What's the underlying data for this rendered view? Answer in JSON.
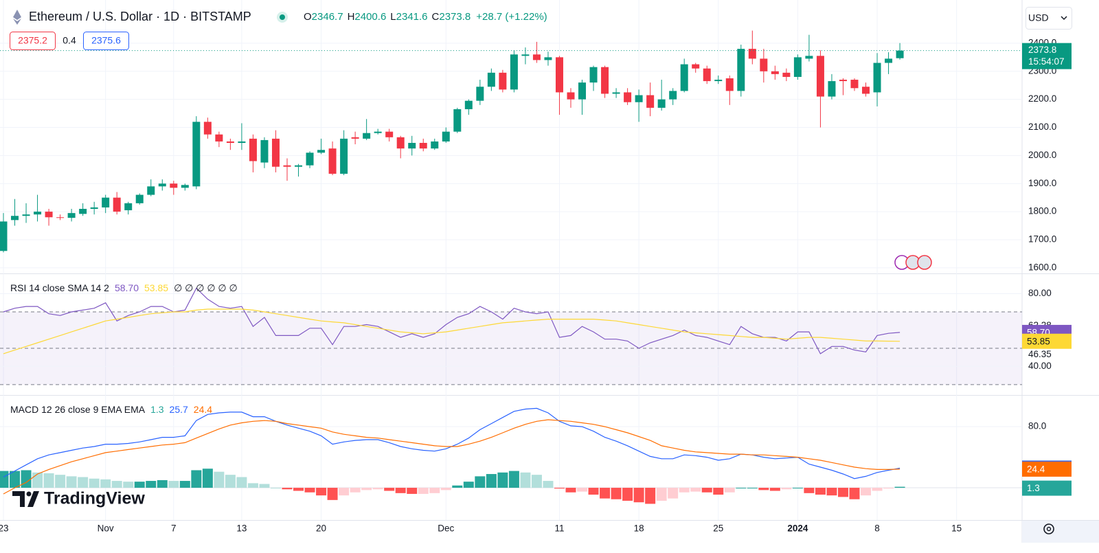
{
  "header": {
    "symbol": "Ethereum / U.S. Dollar · 1D · BITSTAMP",
    "o_label": "O",
    "h_label": "H",
    "l_label": "L",
    "c_label": "C",
    "change": "+28.7 (+1.22%)",
    "bid": "2375.2",
    "spread": "0.4",
    "ask": "2375.6",
    "currency": "USD",
    "brand": "TradingView",
    "countdown": "15:54:07"
  },
  "chart_data": [
    {
      "type": "candlestick",
      "categories": [
        "23",
        null,
        null,
        null,
        null,
        null,
        null,
        null,
        null,
        "Nov",
        null,
        null,
        null,
        null,
        null,
        "7",
        null,
        null,
        null,
        null,
        null,
        "13",
        null,
        null,
        null,
        null,
        null,
        null,
        "20",
        null,
        null,
        null,
        null,
        null,
        null,
        null,
        null,
        null,
        null,
        "Dec",
        null,
        null,
        null,
        null,
        null,
        null,
        null,
        null,
        null,
        "11",
        null,
        null,
        null,
        null,
        null,
        null,
        "18",
        null,
        null,
        null,
        null,
        null,
        null,
        "25",
        null,
        null,
        null,
        null,
        null,
        null,
        "2024",
        null,
        null,
        null,
        null,
        null,
        null,
        "8",
        null,
        null
      ],
      "future_categories": [
        null,
        null,
        null,
        null,
        "15"
      ],
      "open": [
        1660,
        1770,
        1785,
        1790,
        1800,
        1780,
        1778,
        1792,
        1810,
        1815,
        1850,
        1805,
        1830,
        1860,
        1890,
        1900,
        1885,
        1890,
        2120,
        2075,
        2050,
        2045,
        2060,
        1975,
        2060,
        1965,
        1960,
        1965,
        2010,
        2025,
        1935,
        2065,
        2060,
        2080,
        2085,
        2065,
        2025,
        2045,
        2025,
        2050,
        2085,
        2165,
        2195,
        2245,
        2295,
        2235,
        2355,
        2360,
        2340,
        2350,
        2225,
        2200,
        2260,
        2315,
        2220,
        2225,
        2190,
        2215,
        2170,
        2200,
        2230,
        2325,
        2310,
        2265,
        2275,
        2230,
        2380,
        2345,
        2300,
        2295,
        2280,
        2345,
        2355,
        2210,
        2270,
        2270,
        2245,
        2225,
        2330,
        2346.7
      ],
      "high": [
        1795,
        1845,
        1830,
        1860,
        1810,
        1790,
        1810,
        1830,
        1835,
        1860,
        1870,
        1835,
        1865,
        1915,
        1915,
        1910,
        1900,
        2140,
        2135,
        2085,
        2060,
        2115,
        2075,
        2065,
        2090,
        1990,
        1970,
        2015,
        2060,
        2050,
        2090,
        2085,
        2130,
        2095,
        2095,
        2070,
        2070,
        2060,
        2060,
        2100,
        2170,
        2200,
        2270,
        2310,
        2305,
        2375,
        2385,
        2405,
        2370,
        2355,
        2240,
        2270,
        2320,
        2320,
        2240,
        2240,
        2235,
        2260,
        2270,
        2240,
        2345,
        2330,
        2320,
        2285,
        2285,
        2395,
        2445,
        2380,
        2320,
        2310,
        2360,
        2430,
        2375,
        2290,
        2275,
        2275,
        2260,
        2365,
        2368,
        2400.6
      ],
      "low": [
        1655,
        1750,
        1760,
        1765,
        1750,
        1770,
        1765,
        1785,
        1790,
        1795,
        1790,
        1790,
        1825,
        1855,
        1875,
        1860,
        1875,
        1880,
        2060,
        2030,
        2020,
        2020,
        1940,
        1955,
        1940,
        1910,
        1925,
        1955,
        2005,
        1930,
        1930,
        2040,
        2055,
        2075,
        2050,
        1990,
        2000,
        2015,
        2020,
        2045,
        2080,
        2145,
        2180,
        2230,
        2225,
        2225,
        2325,
        2330,
        2320,
        2145,
        2170,
        2145,
        2230,
        2205,
        2205,
        2180,
        2120,
        2140,
        2160,
        2180,
        2225,
        2295,
        2255,
        2255,
        2180,
        2210,
        2325,
        2260,
        2270,
        2265,
        2270,
        2335,
        2100,
        2200,
        2215,
        2230,
        2210,
        2175,
        2290,
        2341.6
      ],
      "close": [
        1765,
        1785,
        1790,
        1800,
        1780,
        1778,
        1795,
        1810,
        1815,
        1850,
        1800,
        1830,
        1860,
        1890,
        1900,
        1885,
        1895,
        2120,
        2075,
        2050,
        2045,
        2050,
        1980,
        2055,
        1960,
        1960,
        1965,
        2010,
        2020,
        1935,
        2060,
        2060,
        2080,
        2085,
        2065,
        2025,
        2045,
        2025,
        2050,
        2085,
        2165,
        2195,
        2245,
        2295,
        2235,
        2360,
        2360,
        2340,
        2350,
        2225,
        2200,
        2260,
        2315,
        2220,
        2225,
        2190,
        2215,
        2170,
        2200,
        2230,
        2325,
        2310,
        2265,
        2270,
        2230,
        2380,
        2345,
        2300,
        2290,
        2280,
        2350,
        2355,
        2210,
        2265,
        2265,
        2240,
        2220,
        2330,
        2345,
        2373.8
      ],
      "up_color": "#089981",
      "down_color": "#f23645",
      "ylim": [
        1580,
        2554
      ],
      "yticks": [
        {
          "value": 1600,
          "label": "1600.0"
        },
        {
          "value": 1700,
          "label": "1700.0"
        },
        {
          "value": 1800,
          "label": "1800.0"
        },
        {
          "value": 1900,
          "label": "1900.0"
        },
        {
          "value": 2000,
          "label": "2000.0"
        },
        {
          "value": 2100,
          "label": "2100.0"
        },
        {
          "value": 2200,
          "label": "2200.0"
        },
        {
          "value": 2300,
          "label": "2300.0"
        },
        {
          "value": 2400,
          "label": "2400.0"
        }
      ],
      "grid": true
    },
    {
      "type": "line",
      "title": "RSI 14 close SMA 14 2",
      "na_values": "∅ ∅ ∅ ∅ ∅ ∅",
      "series": [
        {
          "color": "#7e57c2",
          "last_label": "58.70",
          "values": [
            70,
            72,
            73,
            73,
            69,
            68,
            70,
            71,
            72,
            75,
            65,
            68,
            70,
            73,
            73,
            70,
            71,
            83,
            77,
            73,
            72,
            73,
            62,
            67,
            57,
            57,
            57,
            61,
            61,
            52,
            62,
            62,
            63,
            62,
            59,
            56,
            58,
            56,
            58,
            63,
            67,
            69,
            73,
            70,
            66,
            72,
            70,
            69,
            70,
            56,
            57,
            62,
            59,
            55,
            55,
            54,
            50,
            53,
            55,
            57,
            60,
            57,
            56,
            54,
            52,
            62,
            58,
            56,
            56,
            54,
            59,
            59,
            47,
            51,
            51,
            49,
            48,
            57,
            58.2,
            58.7
          ]
        },
        {
          "color": "#fdd835",
          "last_label": "53.85",
          "values": [
            47,
            49,
            51,
            53,
            55,
            57,
            59,
            61,
            63,
            65,
            66,
            67,
            68,
            69,
            69.5,
            70,
            70,
            71,
            71.5,
            71.5,
            71.5,
            71.5,
            71,
            70,
            69,
            68,
            67,
            66,
            65,
            64.5,
            64,
            63,
            62,
            61,
            60,
            59,
            58.5,
            58,
            58.5,
            59,
            60,
            61,
            62,
            63,
            64,
            64.5,
            65,
            65.5,
            66,
            66,
            66,
            66,
            66,
            65.5,
            65,
            64,
            63,
            62,
            61,
            60,
            59,
            58.5,
            58,
            57.5,
            57,
            56.5,
            56,
            56,
            55.5,
            55,
            55.5,
            56,
            56,
            55.5,
            55,
            54.5,
            54,
            54,
            53.9,
            53.85
          ]
        }
      ],
      "bands": [
        70,
        50,
        30
      ],
      "band_color": "#7e57c2",
      "ylim": [
        24.3,
        90.4
      ],
      "yticks": [
        {
          "value": 80,
          "label": "80.00"
        },
        {
          "value": 40,
          "label": "40.00"
        }
      ],
      "markers": [
        62.28,
        46.35
      ]
    },
    {
      "type": "line",
      "title": "MACD 12 26 close 9 EMA EMA",
      "histogram": {
        "values": [
          22,
          22,
          23,
          20,
          19,
          17,
          15,
          14,
          12,
          11,
          9,
          8,
          8,
          9,
          10,
          9,
          9,
          23,
          25,
          21,
          17,
          14,
          6,
          5,
          0,
          -2,
          -4,
          -6,
          -10,
          -16,
          -10,
          -6,
          -3,
          -2,
          -4,
          -7,
          -8,
          -8,
          -7,
          -3,
          3,
          8,
          15,
          18,
          20,
          22,
          20,
          17,
          9,
          -1,
          -6,
          -5,
          -9,
          -14,
          -15,
          -17,
          -19,
          -21,
          -17,
          -14,
          -6,
          -5,
          -6,
          -9,
          -6,
          0,
          0,
          -3,
          -4,
          -2,
          0,
          -7,
          -9,
          -10,
          -12,
          -15,
          -10,
          -4,
          -1,
          1.3
        ],
        "colors": {
          "grow_above": "#26a69a",
          "fall_above": "#b2dfdb",
          "grow_below": "#ffcdd2",
          "fall_below": "#ff5252"
        }
      },
      "series": [
        {
          "color": "#2962ff",
          "values": [
            14,
            22,
            30,
            38,
            43,
            46,
            49,
            52,
            54,
            57,
            57,
            58,
            60,
            63,
            66,
            66,
            68,
            88,
            96,
            98,
            99,
            99,
            93,
            93,
            87,
            82,
            78,
            74,
            68,
            57,
            60,
            62,
            63,
            63,
            59,
            54,
            51,
            49,
            48,
            51,
            57,
            65,
            76,
            84,
            92,
            100,
            103,
            104,
            98,
            87,
            81,
            80,
            74,
            66,
            61,
            55,
            48,
            41,
            38,
            38,
            43,
            42,
            40,
            36,
            38,
            44,
            43,
            40,
            38,
            39,
            40,
            31,
            27,
            23,
            18,
            12,
            15,
            20,
            23,
            25.7
          ]
        },
        {
          "color": "#ff6d00",
          "values": [
            -8,
            0,
            7,
            18,
            24,
            29,
            34,
            38,
            42,
            46,
            48,
            50,
            52,
            54,
            56,
            57,
            59,
            65,
            71,
            77,
            82,
            85,
            87,
            88,
            87,
            84,
            82,
            80,
            78,
            73,
            70,
            68,
            66,
            65,
            63,
            61,
            59,
            57,
            55,
            54,
            54,
            57,
            61,
            66,
            72,
            78,
            83,
            87,
            89,
            88,
            87,
            85,
            83,
            80,
            76,
            72,
            67,
            62,
            55,
            52,
            49,
            47,
            46,
            45,
            44,
            44,
            43,
            43,
            42,
            41,
            40,
            38,
            36,
            33,
            30,
            27,
            25,
            24,
            24,
            24.4
          ]
        }
      ],
      "ylim": [
        -42.2,
        119.6
      ],
      "yticks": [
        {
          "value": 80,
          "label": "80.0"
        }
      ]
    }
  ]
}
